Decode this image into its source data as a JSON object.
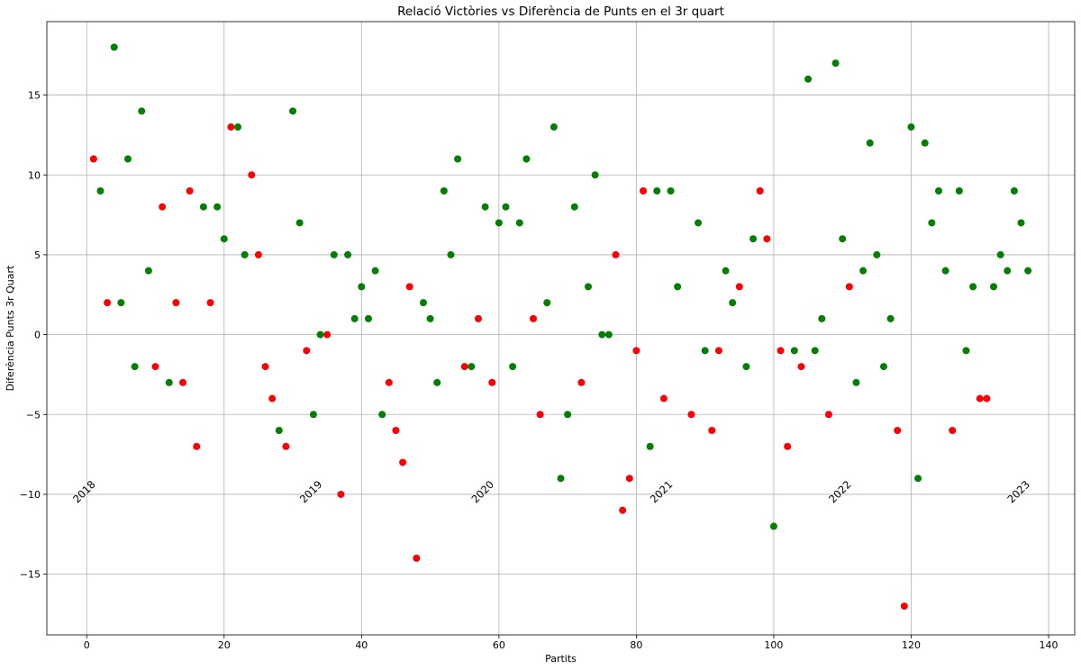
{
  "chart_data": {
    "type": "scatter",
    "title": "Relació Victòries vs Diferència de Punts en el 3r quart",
    "xlabel": "Partits",
    "ylabel": "Diferència Punts 3r Quart",
    "xlim": [
      -5.8,
      143.8
    ],
    "ylim": [
      -18.8,
      19.6
    ],
    "xticks": [
      0,
      20,
      40,
      60,
      80,
      100,
      120,
      140
    ],
    "yticks": [
      -15,
      -10,
      -5,
      0,
      5,
      10,
      15
    ],
    "grid": true,
    "colors": {
      "win": "#008000",
      "loss": "#ff0000"
    },
    "series": [
      {
        "color": "#008000",
        "x": [
          2,
          4,
          5,
          6,
          7,
          8,
          9,
          12,
          17,
          19,
          20,
          22,
          23,
          28,
          30,
          31,
          33,
          34,
          36,
          38,
          39,
          40,
          41,
          42,
          43,
          49,
          50,
          51,
          52,
          53,
          54,
          56,
          58,
          60,
          61,
          62,
          63,
          64,
          67,
          68,
          69,
          70,
          71,
          73,
          74,
          75,
          76,
          82,
          83,
          85,
          86,
          89,
          90,
          93,
          94,
          96,
          97,
          100,
          103,
          105,
          106,
          107,
          109,
          110,
          112,
          113,
          114,
          115,
          116,
          117,
          120,
          121,
          122,
          123,
          124,
          125,
          127,
          128,
          129,
          132,
          133,
          134,
          135,
          136,
          137
        ],
        "y": [
          9,
          18,
          2,
          11,
          -2,
          14,
          4,
          -3,
          8,
          8,
          6,
          13,
          5,
          -6,
          14,
          7,
          -5,
          0,
          5,
          5,
          1,
          3,
          1,
          4,
          -5,
          2,
          1,
          -3,
          9,
          5,
          11,
          -2,
          8,
          7,
          8,
          -2,
          7,
          11,
          2,
          13,
          -9,
          -5,
          8,
          3,
          10,
          0,
          0,
          -7,
          9,
          9,
          3,
          7,
          -1,
          4,
          2,
          -2,
          6,
          -12,
          -1,
          16,
          -1,
          1,
          17,
          6,
          -3,
          4,
          12,
          5,
          -2,
          1,
          13,
          -9,
          12,
          7,
          9,
          4,
          9,
          -1,
          3,
          3,
          5,
          4,
          9,
          7,
          4
        ]
      },
      {
        "color": "#ff0000",
        "x": [
          1,
          3,
          10,
          11,
          13,
          14,
          15,
          16,
          18,
          21,
          24,
          25,
          26,
          27,
          29,
          32,
          35,
          37,
          44,
          45,
          46,
          47,
          48,
          55,
          57,
          59,
          65,
          66,
          72,
          77,
          78,
          79,
          80,
          81,
          84,
          88,
          91,
          92,
          95,
          98,
          99,
          101,
          102,
          104,
          108,
          111,
          118,
          119,
          126,
          130,
          131
        ],
        "y": [
          11,
          2,
          -2,
          8,
          2,
          -3,
          9,
          -7,
          2,
          13,
          10,
          5,
          -2,
          -4,
          -7,
          -1,
          0,
          -10,
          -3,
          -6,
          -8,
          3,
          -14,
          -2,
          1,
          -3,
          1,
          -5,
          -3,
          5,
          -11,
          -9,
          -1,
          9,
          -4,
          -5,
          -6,
          -1,
          3,
          9,
          6,
          -1,
          -7,
          -2,
          -5,
          3,
          -6,
          -17,
          -6,
          -4,
          -4
        ]
      }
    ],
    "annotations": [
      {
        "text": "2018",
        "x": 0,
        "y": -10
      },
      {
        "text": "2019",
        "x": 33,
        "y": -10
      },
      {
        "text": "2020",
        "x": 58,
        "y": -10
      },
      {
        "text": "2021",
        "x": 84,
        "y": -10
      },
      {
        "text": "2022",
        "x": 110,
        "y": -10
      },
      {
        "text": "2023",
        "x": 136,
        "y": -10
      }
    ]
  }
}
